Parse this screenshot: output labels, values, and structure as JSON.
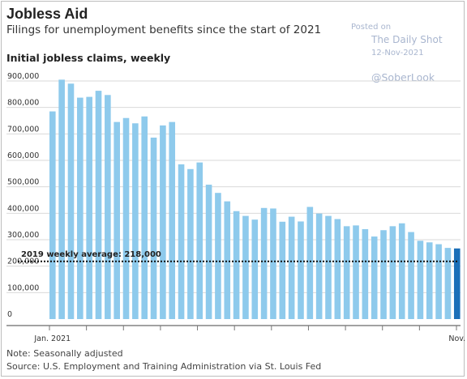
{
  "title": "Jobless Aid",
  "subtitle": "Filings for unemployment benefits since the start of 2021",
  "watermark": {
    "posted_on": "Posted on",
    "source": "The Daily Shot",
    "date": "12-Nov-2021",
    "handle": "@SoberLook"
  },
  "note": "Note: Seasonally adjusted",
  "source": "Source: U.S. Employment and Training Administration via St. Louis Fed",
  "chart_data": {
    "type": "bar",
    "title": "Initial jobless claims, weekly",
    "xlabel": "",
    "ylabel": "",
    "ylim": [
      0,
      900000
    ],
    "yticks": [
      0,
      100000,
      200000,
      300000,
      400000,
      500000,
      600000,
      700000,
      800000,
      900000
    ],
    "ytick_labels": [
      "0",
      "100,000",
      "200,000",
      "300,000",
      "400,000",
      "500,000",
      "600,000",
      "700,000",
      "800,000",
      "900,000"
    ],
    "xtick_labels": [
      {
        "label": "Jan. 2021",
        "index": 0
      },
      {
        "label": "Nov.",
        "index": 44
      }
    ],
    "grid": true,
    "bar_color": "#8ecaec",
    "highlight_color": "#1b6fb8",
    "highlight_index": 44,
    "values": [
      785000,
      905000,
      890000,
      837000,
      840000,
      863000,
      847000,
      745000,
      760000,
      740000,
      766000,
      686000,
      732000,
      745000,
      585000,
      567000,
      592000,
      508000,
      477000,
      445000,
      408000,
      390000,
      376000,
      420000,
      418000,
      368000,
      387000,
      369000,
      424000,
      399000,
      390000,
      378000,
      351000,
      354000,
      340000,
      312000,
      336000,
      351000,
      362000,
      329000,
      296000,
      290000,
      283000,
      269000,
      267000
    ],
    "annotation": {
      "label": "2019 weekly average: 218,000",
      "value": 218000
    }
  }
}
